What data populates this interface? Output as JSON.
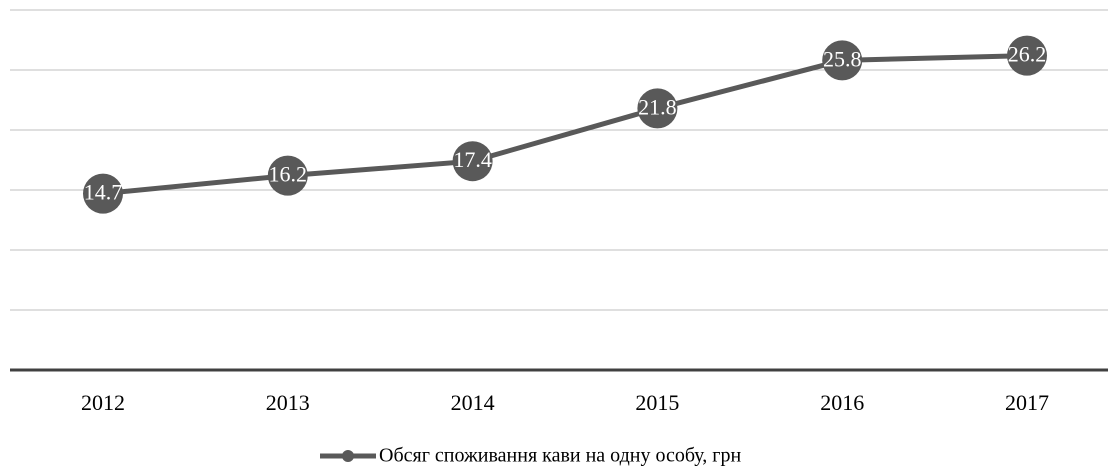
{
  "chart_data": {
    "type": "line",
    "categories": [
      "2012",
      "2013",
      "2014",
      "2015",
      "2016",
      "2017"
    ],
    "series": [
      {
        "name": "Обсяг споживання кави на одну особу, грн",
        "color": "#595959",
        "values": [
          14.7,
          16.2,
          17.4,
          21.8,
          25.8,
          26.2
        ]
      }
    ],
    "ylim": [
      0,
      30
    ],
    "yticks": [
      0,
      5,
      10,
      15,
      20,
      25,
      30
    ],
    "grid": true,
    "legend": "bottom"
  }
}
